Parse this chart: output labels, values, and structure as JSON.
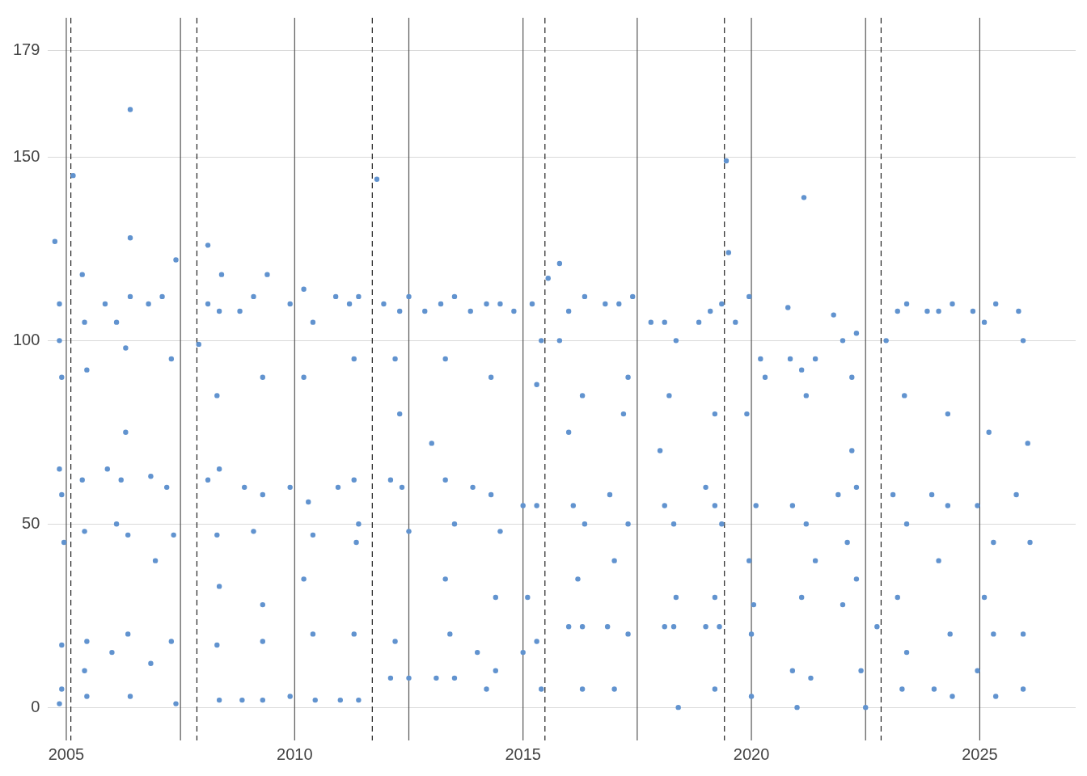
{
  "chart_data": {
    "type": "scatter",
    "xlim": [
      2004.6,
      2027.1
    ],
    "xticks": [
      2005,
      2010,
      2015,
      2020,
      2025
    ],
    "ylim": [
      -9,
      188
    ],
    "yticks": [
      0,
      50,
      100,
      150,
      179
    ],
    "grid": "y",
    "legend": false,
    "marker": "circle",
    "ref_lines": [
      {
        "axis": "x",
        "value": 2005,
        "color": "#555555",
        "line_style": "solid"
      },
      {
        "axis": "x",
        "value": 2007.5,
        "color": "#555555",
        "line_style": "solid"
      },
      {
        "axis": "x",
        "value": 2010,
        "color": "#555555",
        "line_style": "solid"
      },
      {
        "axis": "x",
        "value": 2012.5,
        "color": "#555555",
        "line_style": "solid"
      },
      {
        "axis": "x",
        "value": 2015,
        "color": "#555555",
        "line_style": "solid"
      },
      {
        "axis": "x",
        "value": 2017.5,
        "color": "#555555",
        "line_style": "solid"
      },
      {
        "axis": "x",
        "value": 2020,
        "color": "#555555",
        "line_style": "solid"
      },
      {
        "axis": "x",
        "value": 2022.5,
        "color": "#555555",
        "line_style": "solid"
      },
      {
        "axis": "x",
        "value": 2025,
        "color": "#555555",
        "line_style": "solid"
      },
      {
        "axis": "x",
        "value": 2005.1,
        "color": "#222222",
        "line_style": "dashed"
      },
      {
        "axis": "x",
        "value": 2007.86,
        "color": "#222222",
        "line_style": "dashed"
      },
      {
        "axis": "x",
        "value": 2011.7,
        "color": "#222222",
        "line_style": "dashed"
      },
      {
        "axis": "x",
        "value": 2015.48,
        "color": "#222222",
        "line_style": "dashed"
      },
      {
        "axis": "x",
        "value": 2019.41,
        "color": "#222222",
        "line_style": "dashed"
      },
      {
        "axis": "x",
        "value": 2022.84,
        "color": "#222222",
        "line_style": "dashed"
      }
    ],
    "series": [
      {
        "color": "#6193cf",
        "x": [
          2004.75,
          2005.15,
          2006.4,
          2008.1,
          2011.8,
          2015.55,
          2015.8,
          2019.45,
          2019.5,
          2021.15,
          2020.8,
          2004.85,
          2004.85,
          2004.9,
          2004.85,
          2004.9,
          2004.95,
          2004.9,
          2004.9,
          2004.85,
          2005.35,
          2005.4,
          2005.45,
          2005.35,
          2005.4,
          2005.45,
          2005.4,
          2005.45,
          2005.85,
          2006.1,
          2006.4,
          2006.3,
          2005.9,
          2006.2,
          2006.35,
          2006.1,
          2006.3,
          2006.0,
          2006.35,
          2006.4,
          2006.4,
          2006.8,
          2007.1,
          2007.4,
          2007.3,
          2006.85,
          2007.2,
          2007.35,
          2006.95,
          2007.3,
          2006.85,
          2007.4,
          2008.1,
          2008.35,
          2008.4,
          2008.3,
          2008.1,
          2008.35,
          2008.3,
          2008.35,
          2008.3,
          2008.35,
          2007.9,
          2008.8,
          2009.1,
          2009.4,
          2009.3,
          2008.9,
          2009.3,
          2009.1,
          2009.3,
          2009.3,
          2008.85,
          2009.3,
          2009.9,
          2010.2,
          2010.4,
          2010.2,
          2009.9,
          2010.3,
          2010.4,
          2010.2,
          2010.4,
          2009.9,
          2010.45,
          2010.9,
          2011.2,
          2011.4,
          2011.3,
          2010.95,
          2011.3,
          2011.4,
          2011.35,
          2011.3,
          2011.4,
          2011.0,
          2011.95,
          2012.3,
          2012.5,
          2012.2,
          2012.3,
          2012.1,
          2012.35,
          2012.5,
          2012.2,
          2012.1,
          2012.5,
          2012.85,
          2013.2,
          2013.5,
          2013.3,
          2013.0,
          2013.3,
          2013.5,
          2013.3,
          2013.4,
          2013.1,
          2013.5,
          2013.85,
          2014.2,
          2014.5,
          2014.3,
          2013.9,
          2014.3,
          2014.5,
          2014.4,
          2014.0,
          2014.4,
          2014.2,
          2014.8,
          2015.2,
          2015.4,
          2015.3,
          2015.0,
          2015.3,
          2015.1,
          2015.0,
          2015.3,
          2015.4,
          2015.8,
          2016.0,
          2016.35,
          2016.3,
          2016.0,
          2016.1,
          2016.35,
          2016.2,
          2016.0,
          2016.3,
          2016.3,
          2016.8,
          2017.1,
          2017.4,
          2017.3,
          2017.2,
          2016.9,
          2017.3,
          2017.0,
          2016.85,
          2017.3,
          2017.0,
          2017.8,
          2018.1,
          2018.35,
          2018.2,
          2018.0,
          2018.3,
          2018.1,
          2018.35,
          2018.1,
          2018.3,
          2018.4,
          2018.85,
          2019.1,
          2019.35,
          2019.2,
          2019.0,
          2019.2,
          2019.35,
          2019.2,
          2019.0,
          2019.3,
          2019.2,
          2019.65,
          2019.95,
          2020.2,
          2020.3,
          2019.9,
          2020.1,
          2019.95,
          2020.0,
          2020.05,
          2020.0,
          2020.85,
          2021.1,
          2021.4,
          2021.2,
          2020.9,
          2021.2,
          2021.4,
          2021.1,
          2020.9,
          2021.3,
          2021.0,
          2021.8,
          2022.0,
          2022.3,
          2022.2,
          2021.9,
          2022.3,
          2022.2,
          2022.1,
          2022.3,
          2022.0,
          2022.4,
          2022.5,
          2022.95,
          2023.2,
          2023.4,
          2023.35,
          2023.1,
          2023.4,
          2023.2,
          2023.4,
          2023.3,
          2022.75,
          2023.85,
          2024.1,
          2024.4,
          2024.3,
          2023.95,
          2024.3,
          2024.1,
          2024.35,
          2024.0,
          2024.4,
          2024.85,
          2025.1,
          2025.35,
          2025.2,
          2024.95,
          2025.3,
          2025.1,
          2025.3,
          2024.95,
          2025.35,
          2025.85,
          2025.95,
          2026.05,
          2026.1,
          2025.8,
          2025.95,
          2025.95
        ],
        "values": [
          127,
          145,
          163,
          126,
          144,
          117,
          121,
          149,
          124,
          139,
          109,
          110,
          100,
          90,
          65,
          58,
          45,
          17,
          5,
          1,
          118,
          105,
          92,
          62,
          48,
          18,
          10,
          3,
          110,
          105,
          112,
          98,
          65,
          62,
          47,
          50,
          75,
          15,
          20,
          3,
          128,
          110,
          112,
          122,
          95,
          63,
          60,
          47,
          40,
          18,
          12,
          1,
          110,
          108,
          118,
          85,
          62,
          65,
          47,
          33,
          17,
          2,
          99,
          108,
          112,
          118,
          90,
          60,
          58,
          48,
          28,
          18,
          2,
          2,
          110,
          114,
          105,
          90,
          60,
          56,
          47,
          35,
          20,
          3,
          2,
          112,
          110,
          112,
          95,
          60,
          62,
          50,
          45,
          20,
          2,
          2,
          110,
          108,
          112,
          95,
          80,
          62,
          60,
          48,
          18,
          8,
          8,
          108,
          110,
          112,
          95,
          72,
          62,
          50,
          35,
          20,
          8,
          8,
          108,
          110,
          110,
          90,
          60,
          58,
          48,
          30,
          15,
          10,
          5,
          108,
          110,
          100,
          88,
          55,
          55,
          30,
          15,
          18,
          5,
          100,
          108,
          112,
          85,
          75,
          55,
          50,
          35,
          22,
          22,
          5,
          110,
          110,
          112,
          90,
          80,
          58,
          50,
          40,
          22,
          20,
          5,
          105,
          105,
          100,
          85,
          70,
          50,
          55,
          30,
          22,
          22,
          0,
          105,
          108,
          110,
          80,
          60,
          55,
          50,
          30,
          22,
          22,
          5,
          105,
          112,
          95,
          90,
          80,
          55,
          40,
          20,
          28,
          3,
          95,
          92,
          95,
          85,
          55,
          50,
          40,
          30,
          10,
          8,
          0,
          107,
          100,
          102,
          90,
          58,
          60,
          70,
          45,
          35,
          28,
          10,
          0,
          100,
          108,
          110,
          85,
          58,
          50,
          30,
          15,
          5,
          22,
          108,
          108,
          110,
          80,
          58,
          55,
          40,
          20,
          5,
          3,
          108,
          105,
          110,
          75,
          55,
          45,
          30,
          20,
          10,
          3,
          108,
          100,
          72,
          45,
          58,
          20,
          5
        ]
      }
    ]
  }
}
